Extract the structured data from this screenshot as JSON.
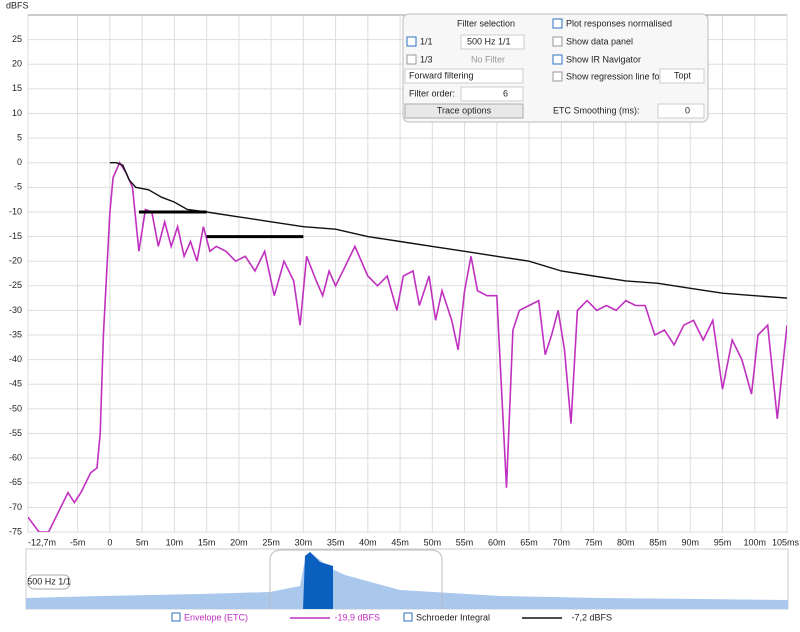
{
  "chart_data": {
    "type": "line",
    "y_label": "dBFS",
    "xlim": [
      -12.7,
      105
    ],
    "ylim": [
      -75,
      30
    ],
    "xticks": [
      {
        "value": -12.7,
        "label": "-12,7m"
      },
      {
        "value": -5,
        "label": "-5m"
      },
      0,
      {
        "value": 5,
        "label": "5m"
      },
      {
        "value": 10,
        "label": "10m"
      },
      {
        "value": 15,
        "label": "15m"
      },
      {
        "value": 20,
        "label": "20m"
      },
      {
        "value": 25,
        "label": "25m"
      },
      {
        "value": 30,
        "label": "30m"
      },
      {
        "value": 35,
        "label": "35m"
      },
      {
        "value": 40,
        "label": "40m"
      },
      {
        "value": 45,
        "label": "45m"
      },
      {
        "value": 50,
        "label": "50m"
      },
      {
        "value": 55,
        "label": "55m"
      },
      {
        "value": 60,
        "label": "60m"
      },
      {
        "value": 65,
        "label": "65m"
      },
      {
        "value": 70,
        "label": "70m"
      },
      {
        "value": 75,
        "label": "75m"
      },
      {
        "value": 80,
        "label": "80m"
      },
      {
        "value": 85,
        "label": "85m"
      },
      {
        "value": 90,
        "label": "90m"
      },
      {
        "value": 95,
        "label": "95m"
      },
      {
        "value": 100,
        "label": "100m"
      },
      {
        "value": 105,
        "label": "105ms"
      }
    ],
    "yticks": [
      25,
      20,
      15,
      10,
      5,
      0,
      -5,
      -10,
      -15,
      -20,
      -25,
      -30,
      -35,
      -40,
      -45,
      -50,
      -55,
      -60,
      -65,
      -70,
      -75
    ],
    "grid": true,
    "series": [
      {
        "name": "Envelope (ETC)",
        "color": "#c030c0",
        "legend_value": "-19,9 dBFS",
        "x": [
          -12.7,
          -11,
          -9.5,
          -8,
          -6.5,
          -5.5,
          -4.5,
          -3,
          -2,
          -1.5,
          -1,
          0,
          0.5,
          1.5,
          2.5,
          3.5,
          4.5,
          5.5,
          6.5,
          7.5,
          8.5,
          9.5,
          10.5,
          11.5,
          12.5,
          13.5,
          14.5,
          15.5,
          16.5,
          18,
          19.5,
          21,
          22.5,
          24,
          25.5,
          27,
          28.5,
          29.5,
          30.5,
          32,
          33,
          34,
          35,
          36.5,
          38,
          40,
          41.5,
          43,
          44.5,
          45.5,
          47,
          48,
          49.5,
          50.5,
          51.5,
          53,
          54,
          55,
          56,
          57,
          58.5,
          60,
          61.5,
          62.5,
          63.5,
          65,
          66.5,
          67.5,
          68.5,
          69.5,
          70.5,
          71.5,
          72.5,
          74,
          75.5,
          77,
          78.5,
          80,
          81.5,
          83,
          84.5,
          86,
          87.5,
          89,
          90.5,
          92,
          93.5,
          95,
          96.5,
          98,
          99.5,
          100.5,
          102,
          103.5,
          105
        ],
        "values": [
          -72,
          -75,
          -75,
          -71,
          -67,
          -69,
          -67,
          -63,
          -62,
          -55,
          -35,
          -10,
          -3,
          0,
          -2,
          -5,
          -18,
          -9.5,
          -10,
          -17,
          -12,
          -17,
          -13,
          -19,
          -16,
          -20,
          -13,
          -18,
          -17,
          -18,
          -20,
          -19,
          -22,
          -18,
          -27,
          -20,
          -24,
          -33,
          -19,
          -24,
          -27,
          -22,
          -25,
          -21,
          -17,
          -23,
          -25,
          -23,
          -30,
          -23,
          -22,
          -29,
          -23,
          -32,
          -26,
          -32,
          -38,
          -26,
          -19,
          -26,
          -27,
          -27,
          -66,
          -34,
          -30,
          -29,
          -28,
          -39,
          -35,
          -30,
          -38,
          -53,
          -30,
          -28,
          -30,
          -29,
          -30,
          -28,
          -29,
          -29,
          -35,
          -34,
          -37,
          -33,
          -32,
          -36,
          -32,
          -46,
          -36,
          -40,
          -47,
          -35,
          -33,
          -52,
          -33
        ]
      },
      {
        "name": "Schroeder Integral",
        "color": "#111111",
        "legend_value": "-7,2 dBFS",
        "x": [
          0,
          1,
          2,
          3,
          4,
          6,
          8,
          10,
          12,
          15,
          20,
          25,
          30,
          35,
          40,
          45,
          50,
          55,
          60,
          65,
          70,
          75,
          80,
          85,
          90,
          95,
          100,
          105
        ],
        "values": [
          0,
          0,
          -0.5,
          -3.5,
          -5,
          -5.5,
          -7,
          -8,
          -9.5,
          -10,
          -11,
          -12,
          -13,
          -13.5,
          -15,
          -16,
          -17,
          -18,
          -19,
          -20,
          -22,
          -23,
          -24,
          -24.5,
          -25.5,
          -26.5,
          -27,
          -27.5
        ]
      }
    ],
    "regression_lines": [
      {
        "x": [
          4.5,
          15
        ],
        "y": -10
      },
      {
        "x": [
          15,
          30
        ],
        "y": -15
      }
    ],
    "navigator_label": "500 Hz 1/1"
  },
  "panel": {
    "filter_selection": "Filter selection",
    "octave": "1/1",
    "octave_filter": "500 Hz 1/1",
    "third": "1/3",
    "third_filter": "No Filter",
    "direction": "Forward filtering",
    "order_label": "Filter order:",
    "order": "6",
    "trace_options": "Trace options",
    "normalised": "Plot responses normalised",
    "data_panel": "Show data panel",
    "ir_navigator": "Show IR Navigator",
    "regression": "Show regression line for:",
    "regression_for": "Topt",
    "smoothing_label": "ETC Smoothing (ms):",
    "smoothing": "0"
  }
}
